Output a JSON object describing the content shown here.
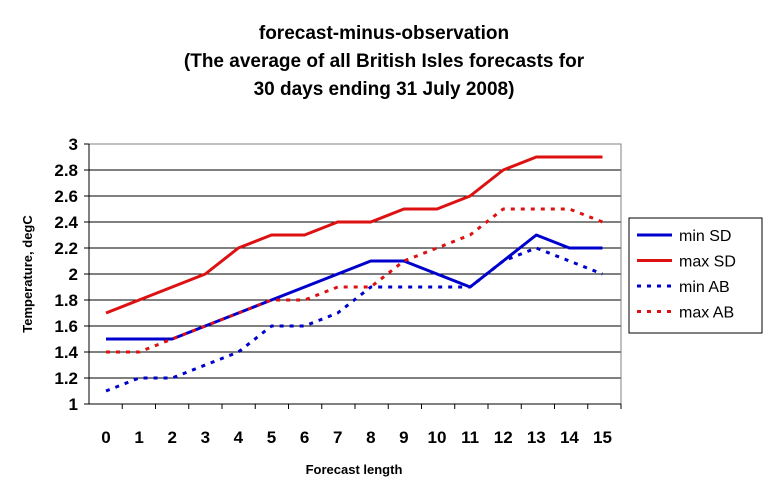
{
  "chart_data": {
    "type": "line",
    "title_lines": [
      "forecast-minus-observation",
      "(The average of all British Isles forecasts for",
      "30 days ending 31 July 2008)"
    ],
    "xlabel": "Forecast length",
    "ylabel": "Temperature, degC",
    "x": [
      0,
      1,
      2,
      3,
      4,
      5,
      6,
      7,
      8,
      9,
      10,
      11,
      12,
      13,
      14,
      15
    ],
    "ylim": [
      1,
      3
    ],
    "yticks": [
      1,
      1.2,
      1.4,
      1.6,
      1.8,
      2,
      2.2,
      2.4,
      2.6,
      2.8,
      3
    ],
    "grid": "horizontal",
    "legend_position": "right",
    "series": [
      {
        "name": "min SD",
        "color": "#0000cc",
        "style": "solid",
        "values": [
          1.5,
          1.5,
          1.5,
          1.6,
          1.7,
          1.8,
          1.9,
          2.0,
          2.1,
          2.1,
          2.0,
          1.9,
          2.1,
          2.3,
          2.2,
          2.2
        ]
      },
      {
        "name": "max SD",
        "color": "#dd1111",
        "style": "solid",
        "values": [
          1.7,
          1.8,
          1.9,
          2.0,
          2.2,
          2.3,
          2.3,
          2.4,
          2.4,
          2.5,
          2.5,
          2.6,
          2.8,
          2.9,
          2.9,
          2.9
        ]
      },
      {
        "name": "min AB",
        "color": "#0000cc",
        "style": "dotted",
        "values": [
          1.1,
          1.2,
          1.2,
          1.3,
          1.4,
          1.6,
          1.6,
          1.7,
          1.9,
          1.9,
          1.9,
          1.9,
          2.1,
          2.2,
          2.1,
          2.0
        ]
      },
      {
        "name": "max AB",
        "color": "#dd1111",
        "style": "dotted",
        "values": [
          1.4,
          1.4,
          1.5,
          1.6,
          1.7,
          1.8,
          1.8,
          1.9,
          1.9,
          2.1,
          2.2,
          2.3,
          2.5,
          2.5,
          2.5,
          2.4
        ]
      }
    ]
  }
}
